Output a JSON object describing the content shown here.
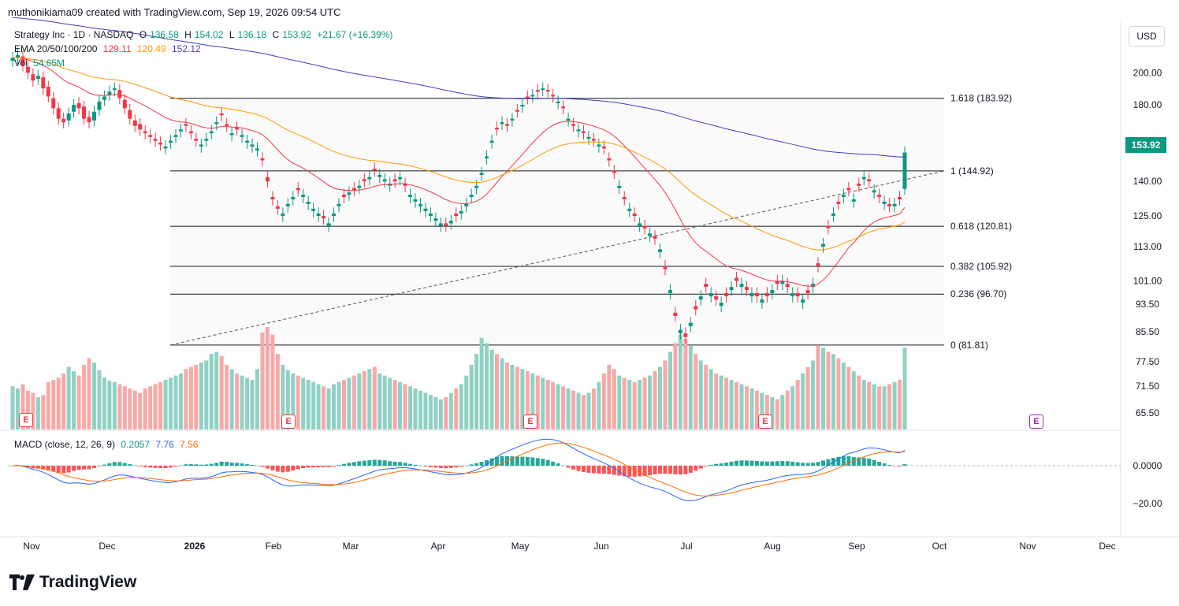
{
  "header": {
    "credit": "muthonikiama09 created with TradingView.com, Sep 19, 2026 09:54 UTC"
  },
  "legend": {
    "symbol": "Strategy Inc · 1D · NASDAQ",
    "o_label": "O",
    "o": "136.58",
    "h_label": "H",
    "h": "154.02",
    "l_label": "L",
    "l": "136.18",
    "c_label": "C",
    "c": "153.92",
    "chg": "+21.67 (+16.39%)",
    "ema_label": "EMA 20/50/100/200",
    "ema20": "129.11",
    "ema50": "120.49",
    "ema100": "152.12",
    "vol_label": "Vol",
    "vol": "54.65M",
    "macd_label": "MACD (close, 12, 26, 9)",
    "macd_hist": "0.2057",
    "macd_line": "7.76",
    "macd_signal": "7.56"
  },
  "currency": "USD",
  "last_price_badge": "153.92",
  "brand": "TradingView",
  "colors": {
    "up": "#089981",
    "down": "#f23645",
    "ema20": "#f23645",
    "ema50": "#ff9800",
    "ema200": "#3f3fbf",
    "macd": "#2962ff",
    "signal": "#ff6d00"
  },
  "chart_data": {
    "type": "candlestick",
    "xaxis_ticks": [
      "Nov",
      "Dec",
      "2026",
      "Feb",
      "Mar",
      "Apr",
      "May",
      "Jun",
      "Jul",
      "Aug",
      "Sep",
      "Oct",
      "Nov",
      "Dec"
    ],
    "yaxis_ticks": [
      "200.00",
      "180.00",
      "160.00",
      "140.00",
      "125.00",
      "113.00",
      "101.00",
      "93.50",
      "85.50",
      "77.50",
      "71.50",
      "65.50"
    ],
    "ylog": true,
    "macd_ticks": [
      "0.0000",
      "−20.00"
    ],
    "fib_levels": [
      {
        "label": "1.618 (183.92)",
        "value": 183.92
      },
      {
        "label": "1 (144.92)",
        "value": 144.92
      },
      {
        "label": "0.618 (120.81)",
        "value": 120.81
      },
      {
        "label": "0.382 (105.92)",
        "value": 105.92
      },
      {
        "label": "0.236 (96.70)",
        "value": 96.7
      },
      {
        "label": "0 (81.81)",
        "value": 81.81
      }
    ],
    "trendline": {
      "from": [
        "2025-12-20",
        81.81
      ],
      "to": [
        "2026-10-01",
        144.92
      ]
    },
    "earnings_markers": [
      "E",
      "E",
      "E",
      "E"
    ],
    "closes": [
      210,
      212,
      205,
      200,
      195,
      198,
      190,
      185,
      178,
      172,
      170,
      175,
      180,
      178,
      172,
      170,
      176,
      182,
      185,
      188,
      190,
      184,
      178,
      172,
      168,
      166,
      164,
      162,
      160,
      158,
      157,
      160,
      163,
      166,
      168,
      164,
      160,
      158,
      161,
      165,
      170,
      174,
      168,
      164,
      166,
      163,
      160,
      158,
      156,
      150,
      140,
      132,
      128,
      126,
      130,
      133,
      136,
      134,
      131,
      128,
      126,
      124,
      122,
      126,
      130,
      133,
      135,
      136,
      138,
      140,
      142,
      145,
      143,
      141,
      139,
      140,
      142,
      138,
      134,
      132,
      130,
      128,
      126,
      124,
      122,
      121,
      123,
      125,
      127,
      130,
      134,
      138,
      144,
      152,
      160,
      166,
      170,
      168,
      172,
      176,
      180,
      184,
      186,
      188,
      190,
      188,
      185,
      182,
      178,
      172,
      168,
      166,
      164,
      162,
      160,
      158,
      156,
      150,
      144,
      138,
      132,
      128,
      125,
      122,
      120,
      118,
      116,
      112,
      105,
      98,
      90,
      86,
      84,
      88,
      92,
      96,
      99,
      97,
      95,
      94,
      96,
      99,
      101,
      100,
      98,
      97,
      96,
      95,
      96,
      98,
      100,
      101,
      99,
      97,
      96,
      95,
      97,
      100,
      106,
      114,
      120,
      126,
      130,
      134,
      136,
      132,
      138,
      142,
      140,
      136,
      133,
      131,
      129,
      130,
      132,
      153.92
    ],
    "opens": [
      208,
      210,
      211,
      204,
      199,
      196,
      197,
      191,
      184,
      178,
      172,
      171,
      176,
      181,
      179,
      173,
      171,
      177,
      183,
      186,
      189,
      189,
      183,
      177,
      171,
      169,
      165,
      163,
      161,
      159,
      156,
      159,
      162,
      165,
      169,
      165,
      161,
      157,
      160,
      164,
      169,
      175,
      169,
      163,
      167,
      162,
      159,
      157,
      155,
      151,
      142,
      133,
      129,
      125,
      129,
      132,
      137,
      133,
      130,
      127,
      125,
      125,
      121,
      125,
      129,
      134,
      134,
      137,
      137,
      141,
      141,
      146,
      142,
      140,
      138,
      141,
      141,
      139,
      133,
      131,
      129,
      127,
      125,
      123,
      121,
      122,
      122,
      126,
      126,
      129,
      133,
      137,
      143,
      151,
      159,
      167,
      169,
      169,
      171,
      177,
      179,
      185,
      185,
      189,
      189,
      189,
      186,
      181,
      179,
      171,
      169,
      165,
      165,
      161,
      161,
      157,
      157,
      151,
      145,
      137,
      133,
      127,
      126,
      121,
      121,
      117,
      117,
      111,
      106,
      97,
      91,
      85,
      85,
      87,
      93,
      95,
      100,
      96,
      96,
      93,
      97,
      98,
      102,
      99,
      99,
      96,
      97,
      94,
      97,
      97,
      101,
      100,
      100,
      96,
      97,
      94,
      98,
      99,
      107,
      113,
      121,
      125,
      131,
      133,
      137,
      131,
      139,
      141,
      141,
      135,
      134,
      130,
      130,
      129,
      133,
      136.58
    ],
    "volumes": [
      40,
      38,
      42,
      36,
      34,
      30,
      32,
      44,
      46,
      48,
      52,
      58,
      54,
      50,
      60,
      66,
      62,
      55,
      48,
      45,
      44,
      42,
      40,
      38,
      36,
      34,
      38,
      40,
      42,
      44,
      46,
      48,
      50,
      52,
      56,
      58,
      60,
      62,
      64,
      70,
      72,
      68,
      60,
      56,
      52,
      50,
      48,
      46,
      56,
      90,
      95,
      88,
      70,
      60,
      55,
      52,
      50,
      48,
      46,
      44,
      42,
      40,
      38,
      42,
      44,
      46,
      48,
      50,
      52,
      54,
      56,
      58,
      52,
      50,
      48,
      46,
      44,
      42,
      40,
      38,
      36,
      34,
      32,
      30,
      28,
      30,
      34,
      38,
      42,
      50,
      60,
      70,
      85,
      80,
      74,
      70,
      66,
      62,
      60,
      58,
      56,
      54,
      52,
      50,
      48,
      46,
      44,
      42,
      40,
      38,
      36,
      34,
      32,
      34,
      38,
      44,
      52,
      60,
      56,
      50,
      48,
      46,
      44,
      46,
      48,
      50,
      54,
      58,
      64,
      72,
      80,
      88,
      84,
      78,
      70,
      64,
      60,
      56,
      52,
      50,
      48,
      46,
      44,
      42,
      40,
      38,
      36,
      34,
      32,
      30,
      28,
      32,
      36,
      40,
      46,
      52,
      58,
      64,
      78,
      76,
      72,
      70,
      66,
      62,
      58,
      54,
      50,
      46,
      44,
      42,
      40,
      40,
      42,
      44,
      46,
      76
    ]
  }
}
